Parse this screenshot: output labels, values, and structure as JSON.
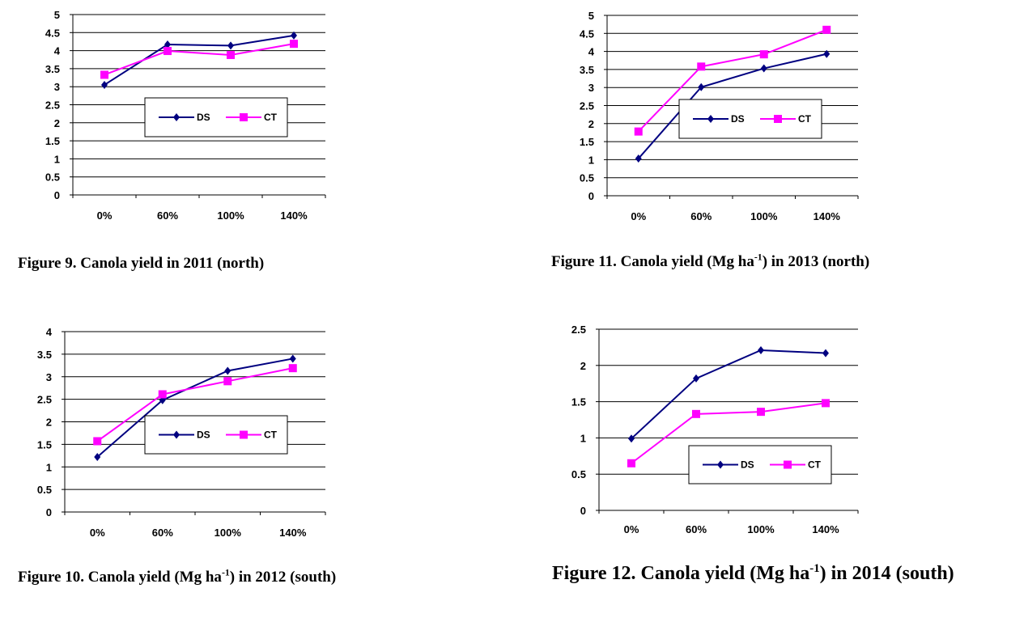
{
  "chart_data": [
    {
      "type": "line",
      "categories": [
        "0%",
        "60%",
        "100%",
        "140%"
      ],
      "series": [
        {
          "name": "DS",
          "values": [
            3.05,
            4.17,
            4.14,
            4.42
          ]
        },
        {
          "name": "CT",
          "values": [
            3.33,
            3.99,
            3.88,
            4.19
          ]
        }
      ],
      "ylim": [
        0,
        5
      ],
      "yticks": [
        "0",
        "0.5",
        "1",
        "1.5",
        "2",
        "2.5",
        "3",
        "3.5",
        "4",
        "4.5",
        "5"
      ],
      "grid": true,
      "legend": "center",
      "caption": {
        "pre": "Figure 9.  Canola yield in 2011 (north)",
        "sup": "",
        "post": ""
      }
    },
    {
      "type": "line",
      "categories": [
        "0%",
        "60%",
        "100%",
        "140%"
      ],
      "series": [
        {
          "name": "DS",
          "values": [
            1.03,
            3.01,
            3.53,
            3.93
          ]
        },
        {
          "name": "CT",
          "values": [
            1.78,
            3.58,
            3.92,
            4.6
          ]
        }
      ],
      "ylim": [
        0,
        5
      ],
      "yticks": [
        "0",
        "0.5",
        "1",
        "1.5",
        "2",
        "2.5",
        "3",
        "3.5",
        "4",
        "4.5",
        "5"
      ],
      "grid": true,
      "legend": "center",
      "caption": {
        "pre": "Figure 11. Canola yield (Mg ha",
        "sup": "-1",
        "post": ") in 2013 (north)"
      }
    },
    {
      "type": "line",
      "categories": [
        "0%",
        "60%",
        "100%",
        "140%"
      ],
      "series": [
        {
          "name": "DS",
          "values": [
            1.22,
            2.48,
            3.13,
            3.4
          ]
        },
        {
          "name": "CT",
          "values": [
            1.57,
            2.61,
            2.9,
            3.19
          ]
        }
      ],
      "ylim": [
        0,
        4
      ],
      "yticks": [
        "0",
        "0.5",
        "1",
        "1.5",
        "2",
        "2.5",
        "3",
        "3.5",
        "4"
      ],
      "grid": true,
      "legend": "center",
      "caption": {
        "pre": "Figure 10. Canola yield (Mg ha",
        "sup": "-1",
        "post": ") in 2012 (south)"
      }
    },
    {
      "type": "line",
      "categories": [
        "0%",
        "60%",
        "100%",
        "140%"
      ],
      "series": [
        {
          "name": "DS",
          "values": [
            0.99,
            1.82,
            2.21,
            2.17
          ]
        },
        {
          "name": "CT",
          "values": [
            0.65,
            1.33,
            1.36,
            1.48
          ]
        }
      ],
      "ylim": [
        0,
        2.5
      ],
      "yticks": [
        "0",
        "0.5",
        "1",
        "1.5",
        "2",
        "2.5"
      ],
      "grid": true,
      "legend": "center",
      "caption": {
        "pre": "Figure 12. Canola yield (Mg ha",
        "sup": "-1",
        "post": ") in 2014 (south)"
      }
    }
  ],
  "colors": {
    "DS": "#000080",
    "CT": "#ff00ff",
    "grid": "#000000"
  }
}
